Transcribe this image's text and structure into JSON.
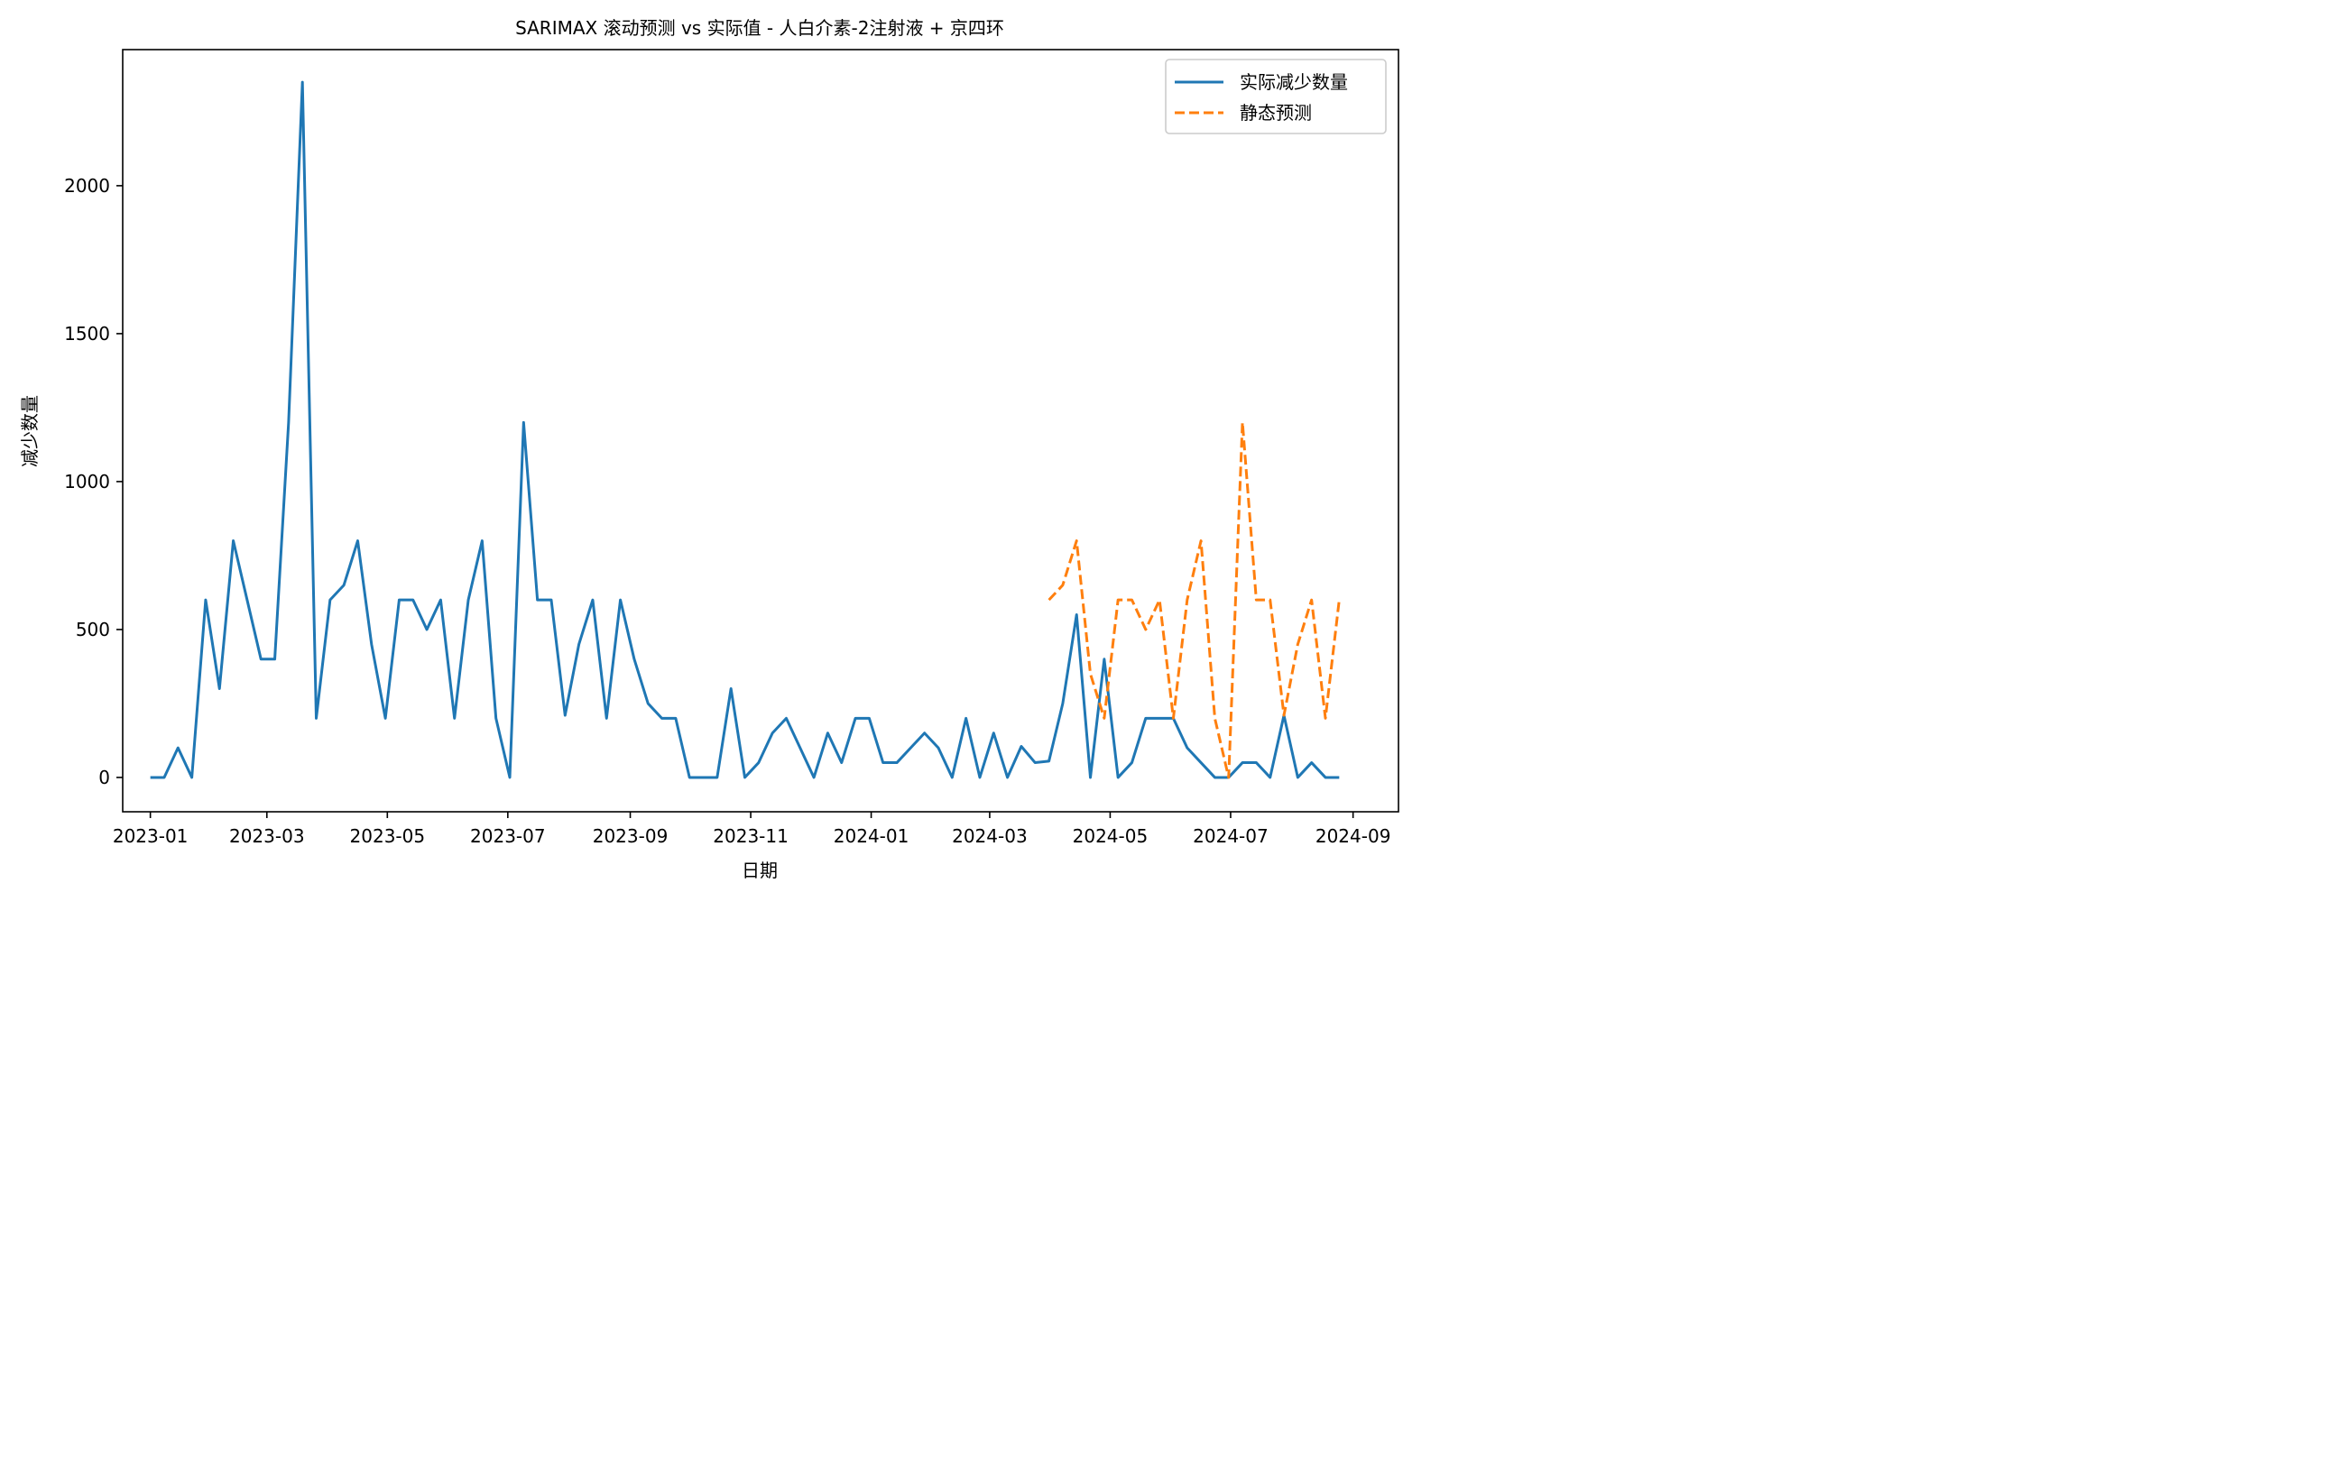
{
  "chart_data": {
    "type": "line",
    "title": "SARIMAX 滚动预测 vs 实际值 - 人白介素-2注射液 + 京四环",
    "xlabel": "日期",
    "ylabel": "减少数量",
    "x_axis_type": "date",
    "xlim": [
      "2022-12-18",
      "2024-09-24"
    ],
    "ylim": [
      -116,
      2460
    ],
    "x_ticks": [
      "2023-01-01",
      "2023-03-01",
      "2023-05-01",
      "2023-07-01",
      "2023-09-01",
      "2023-11-01",
      "2024-01-01",
      "2024-03-01",
      "2024-05-01",
      "2024-07-01",
      "2024-09-01"
    ],
    "x_tick_labels": [
      "2023-01",
      "2023-03",
      "2023-05",
      "2023-07",
      "2023-09",
      "2023-11",
      "2024-01",
      "2024-03",
      "2024-05",
      "2024-07",
      "2024-09"
    ],
    "y_ticks": [
      0,
      500,
      1000,
      1500,
      2000
    ],
    "y_tick_labels": [
      "0",
      "500",
      "1000",
      "1500",
      "2000"
    ],
    "legend_position": "top-right",
    "series": [
      {
        "name": "实际减少数量",
        "color": "#1f77b4",
        "style": "solid",
        "x": [
          "2023-01-01",
          "2023-01-08",
          "2023-01-15",
          "2023-01-22",
          "2023-01-29",
          "2023-02-05",
          "2023-02-12",
          "2023-02-19",
          "2023-02-26",
          "2023-03-05",
          "2023-03-12",
          "2023-03-19",
          "2023-03-26",
          "2023-04-02",
          "2023-04-09",
          "2023-04-16",
          "2023-04-23",
          "2023-04-30",
          "2023-05-07",
          "2023-05-14",
          "2023-05-21",
          "2023-05-28",
          "2023-06-04",
          "2023-06-11",
          "2023-06-18",
          "2023-06-25",
          "2023-07-02",
          "2023-07-09",
          "2023-07-16",
          "2023-07-23",
          "2023-07-30",
          "2023-08-06",
          "2023-08-13",
          "2023-08-20",
          "2023-08-27",
          "2023-09-03",
          "2023-09-10",
          "2023-09-17",
          "2023-09-24",
          "2023-10-01",
          "2023-10-08",
          "2023-10-15",
          "2023-10-22",
          "2023-10-29",
          "2023-11-05",
          "2023-11-12",
          "2023-11-19",
          "2023-11-26",
          "2023-12-03",
          "2023-12-10",
          "2023-12-17",
          "2023-12-24",
          "2023-12-31",
          "2024-01-07",
          "2024-01-14",
          "2024-01-21",
          "2024-01-28",
          "2024-02-04",
          "2024-02-11",
          "2024-02-18",
          "2024-02-25",
          "2024-03-03",
          "2024-03-10",
          "2024-03-17",
          "2024-03-24",
          "2024-03-31",
          "2024-04-07",
          "2024-04-14",
          "2024-04-21",
          "2024-04-28",
          "2024-05-05",
          "2024-05-12",
          "2024-05-19",
          "2024-05-26",
          "2024-06-02",
          "2024-06-09",
          "2024-06-16",
          "2024-06-23",
          "2024-06-30",
          "2024-07-07",
          "2024-07-14",
          "2024-07-21",
          "2024-07-28",
          "2024-08-04",
          "2024-08-11",
          "2024-08-18",
          "2024-08-25"
        ],
        "values": [
          0,
          0,
          100,
          0,
          600,
          300,
          800,
          600,
          400,
          400,
          1200,
          2350,
          200,
          600,
          650,
          800,
          450,
          200,
          600,
          600,
          500,
          600,
          200,
          600,
          800,
          200,
          0,
          1200,
          600,
          600,
          210,
          450,
          600,
          200,
          600,
          400,
          250,
          200,
          200,
          0,
          0,
          0,
          300,
          0,
          50,
          150,
          200,
          100,
          0,
          150,
          50,
          200,
          200,
          50,
          50,
          100,
          150,
          100,
          0,
          200,
          0,
          150,
          0,
          105,
          50,
          55,
          250,
          550,
          0,
          400,
          0,
          50,
          200,
          200,
          200,
          100,
          50,
          0,
          0,
          50,
          50,
          0,
          210,
          0,
          50,
          0,
          0
        ]
      },
      {
        "name": "静态预测",
        "color": "#ff7f0e",
        "style": "dashed",
        "x": [
          "2024-03-31",
          "2024-04-07",
          "2024-04-14",
          "2024-04-21",
          "2024-04-28",
          "2024-05-05",
          "2024-05-12",
          "2024-05-19",
          "2024-05-26",
          "2024-06-02",
          "2024-06-09",
          "2024-06-16",
          "2024-06-23",
          "2024-06-30",
          "2024-07-07",
          "2024-07-14",
          "2024-07-21",
          "2024-07-28",
          "2024-08-04",
          "2024-08-11",
          "2024-08-18",
          "2024-08-25"
        ],
        "values": [
          600,
          650,
          800,
          350,
          200,
          600,
          600,
          500,
          600,
          200,
          600,
          800,
          200,
          0,
          1200,
          600,
          600,
          210,
          450,
          600,
          200,
          600
        ]
      }
    ]
  }
}
